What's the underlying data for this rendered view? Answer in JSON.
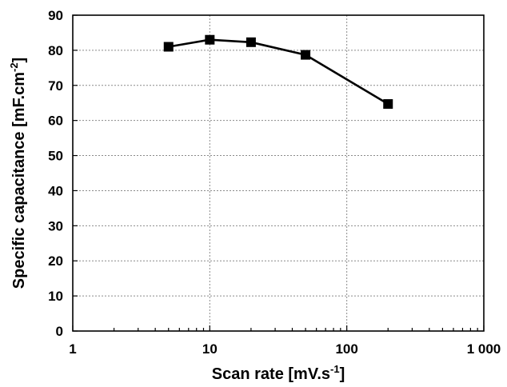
{
  "chart_data": {
    "type": "line",
    "xlabel": "Scan rate [mV.s",
    "xlabel_sup": "-1",
    "xlabel_end": "]",
    "ylabel": "Specific capacitance [mF.cm",
    "ylabel_sup": "-2",
    "ylabel_end": "]",
    "x_scale": "log",
    "xlim": [
      1,
      1000
    ],
    "ylim": [
      0,
      90
    ],
    "x_ticks": [
      1,
      10,
      100,
      1000
    ],
    "x_tick_labels": [
      "1",
      "10",
      "100",
      "1 000"
    ],
    "y_ticks": [
      0,
      10,
      20,
      30,
      40,
      50,
      60,
      70,
      80,
      90
    ],
    "y_tick_labels": [
      "0",
      "10",
      "20",
      "30",
      "40",
      "50",
      "60",
      "70",
      "80",
      "90"
    ],
    "grid": true,
    "legend": "none",
    "marker": "square",
    "line_color": "#000000",
    "series": [
      {
        "x": [
          5,
          10,
          20,
          50,
          200
        ],
        "y": [
          81,
          83,
          82.3,
          78.7,
          64.7
        ]
      }
    ]
  }
}
